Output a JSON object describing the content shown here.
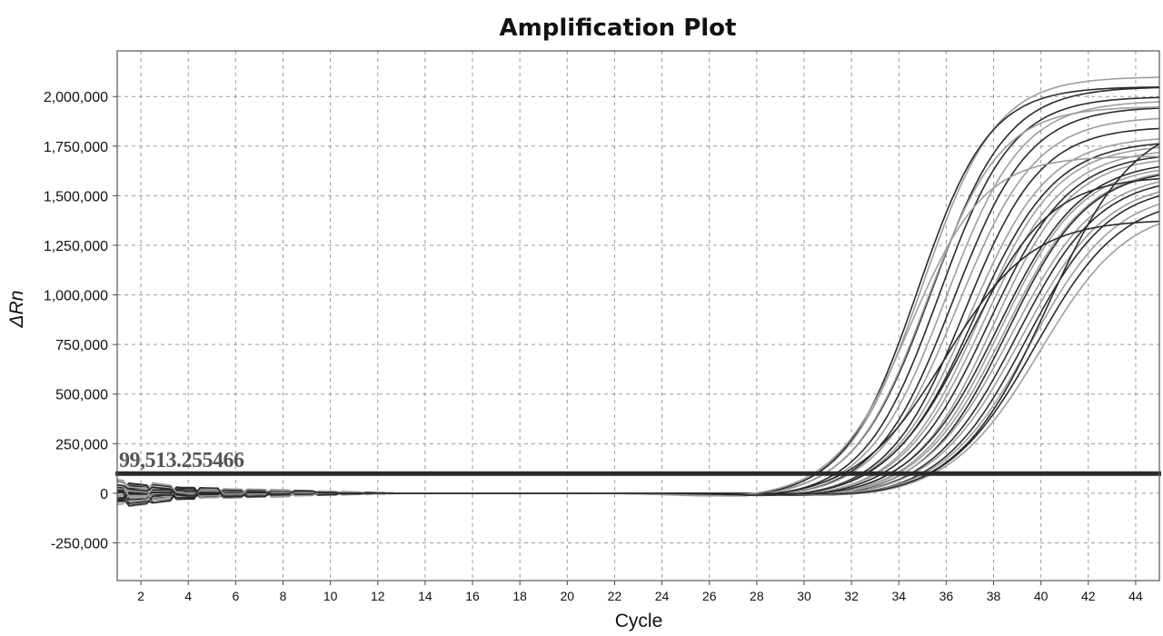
{
  "chart_data": {
    "type": "line",
    "title": "Amplification Plot",
    "xlabel": "Cycle",
    "ylabel": "ΔRn",
    "xlim": [
      1,
      45
    ],
    "ylim": [
      -440000,
      2230000
    ],
    "grid": true,
    "legend": "none",
    "x_ticks": [
      2,
      4,
      6,
      8,
      10,
      12,
      14,
      16,
      18,
      20,
      22,
      24,
      26,
      28,
      30,
      32,
      34,
      36,
      38,
      40,
      42,
      44
    ],
    "y_ticks": [
      -250000,
      0,
      250000,
      500000,
      750000,
      1000000,
      1250000,
      1500000,
      1750000,
      2000000
    ],
    "y_tick_labels": [
      "-250,000",
      "0",
      "250,000",
      "500,000",
      "750,000",
      "1,000,000",
      "1,250,000",
      "1,500,000",
      "1,750,000",
      "2,000,000"
    ],
    "threshold": {
      "value": 99513.255466,
      "label": "99,513.255466"
    },
    "curve_model": "sigmoid",
    "curve_params_note": "plateau (ΔRn at cycle 45), midpoint cycle, slope",
    "series": [
      {
        "plateau": 2100000,
        "mid": 35.0,
        "slope": 1.55,
        "shade": "light"
      },
      {
        "plateau": 2050000,
        "mid": 35.4,
        "slope": 1.6,
        "shade": "dark"
      },
      {
        "plateau": 2000000,
        "mid": 35.7,
        "slope": 1.55,
        "shade": "dark"
      },
      {
        "plateau": 1980000,
        "mid": 36.0,
        "slope": 1.6,
        "shade": "light"
      },
      {
        "plateau": 1950000,
        "mid": 36.3,
        "slope": 1.6,
        "shade": "dark"
      },
      {
        "plateau": 1900000,
        "mid": 36.5,
        "slope": 1.65,
        "shade": "light"
      },
      {
        "plateau": 1850000,
        "mid": 36.8,
        "slope": 1.6,
        "shade": "dark"
      },
      {
        "plateau": 1800000,
        "mid": 37.0,
        "slope": 1.65,
        "shade": "light"
      },
      {
        "plateau": 1780000,
        "mid": 37.2,
        "slope": 1.7,
        "shade": "dark"
      },
      {
        "plateau": 1760000,
        "mid": 37.4,
        "slope": 1.65,
        "shade": "light"
      },
      {
        "plateau": 1740000,
        "mid": 37.6,
        "slope": 1.7,
        "shade": "light"
      },
      {
        "plateau": 1720000,
        "mid": 37.8,
        "slope": 1.7,
        "shade": "dark"
      },
      {
        "plateau": 1700000,
        "mid": 38.0,
        "slope": 1.65,
        "shade": "light"
      },
      {
        "plateau": 1680000,
        "mid": 38.2,
        "slope": 1.75,
        "shade": "dark"
      },
      {
        "plateau": 1660000,
        "mid": 38.3,
        "slope": 1.7,
        "shade": "light"
      },
      {
        "plateau": 1650000,
        "mid": 38.5,
        "slope": 1.75,
        "shade": "light"
      },
      {
        "plateau": 1640000,
        "mid": 38.6,
        "slope": 1.7,
        "shade": "dark"
      },
      {
        "plateau": 1620000,
        "mid": 38.8,
        "slope": 1.8,
        "shade": "light"
      },
      {
        "plateau": 1600000,
        "mid": 39.0,
        "slope": 1.75,
        "shade": "dark"
      },
      {
        "plateau": 1580000,
        "mid": 39.2,
        "slope": 1.8,
        "shade": "light"
      },
      {
        "plateau": 1560000,
        "mid": 39.4,
        "slope": 1.75,
        "shade": "dark"
      },
      {
        "plateau": 1530000,
        "mid": 39.6,
        "slope": 1.8,
        "shade": "light"
      },
      {
        "plateau": 1500000,
        "mid": 39.8,
        "slope": 1.8,
        "shade": "dark"
      },
      {
        "plateau": 1450000,
        "mid": 40.0,
        "slope": 1.85,
        "shade": "light"
      },
      {
        "plateau": 1380000,
        "mid": 36.0,
        "slope": 1.8,
        "shade": "dark"
      },
      {
        "plateau": 2050000,
        "mid": 34.8,
        "slope": 1.5,
        "shade": "dark"
      },
      {
        "plateau": 1950000,
        "mid": 35.2,
        "slope": 1.55,
        "shade": "light"
      },
      {
        "plateau": 1900000,
        "mid": 40.3,
        "slope": 1.85,
        "shade": "dark"
      },
      {
        "plateau": 1700000,
        "mid": 34.5,
        "slope": 1.55,
        "shade": "light"
      },
      {
        "plateau": 1600000,
        "mid": 37.0,
        "slope": 1.7,
        "shade": "dark"
      }
    ]
  }
}
